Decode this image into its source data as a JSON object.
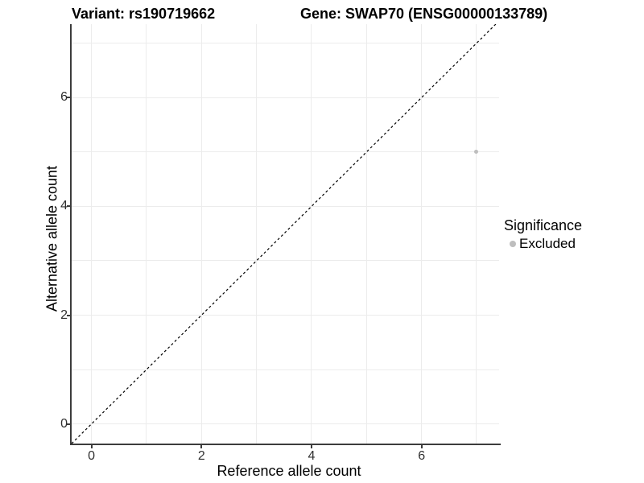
{
  "header": {
    "title_left": "Variant: rs190719662",
    "title_right": "Gene: SWAP70 (ENSG00000133789)"
  },
  "chart_data": {
    "type": "scatter",
    "title": "Variant: rs190719662   Gene: SWAP70 (ENSG00000133789)",
    "xlabel": "Reference allele count",
    "ylabel": "Alternative allele count",
    "xlim": [
      -0.36,
      7.41
    ],
    "ylim": [
      -0.36,
      7.35
    ],
    "x_ticks": [
      0,
      2,
      4,
      6
    ],
    "y_ticks": [
      0,
      2,
      4,
      6
    ],
    "grid_values_x": [
      0,
      1,
      2,
      3,
      4,
      5,
      6,
      7
    ],
    "grid_values_y": [
      0,
      1,
      2,
      3,
      4,
      5,
      6,
      7
    ],
    "grid": true,
    "points": [
      {
        "x": 7,
        "y": 5,
        "significance": "Excluded"
      }
    ],
    "reference_line": {
      "slope": 1,
      "intercept": 0,
      "linetype": "dashed"
    },
    "legend": {
      "title": "Significance",
      "position": "right",
      "items": [
        {
          "label": "Excluded",
          "color": "#bebebe"
        }
      ]
    },
    "colors": {
      "point": "#bebebe",
      "gridline": "#ececec",
      "axis_line": "#3c3c3c",
      "reference_line": "#000000",
      "tick_text": "#303030",
      "title_text": "#000000"
    }
  }
}
